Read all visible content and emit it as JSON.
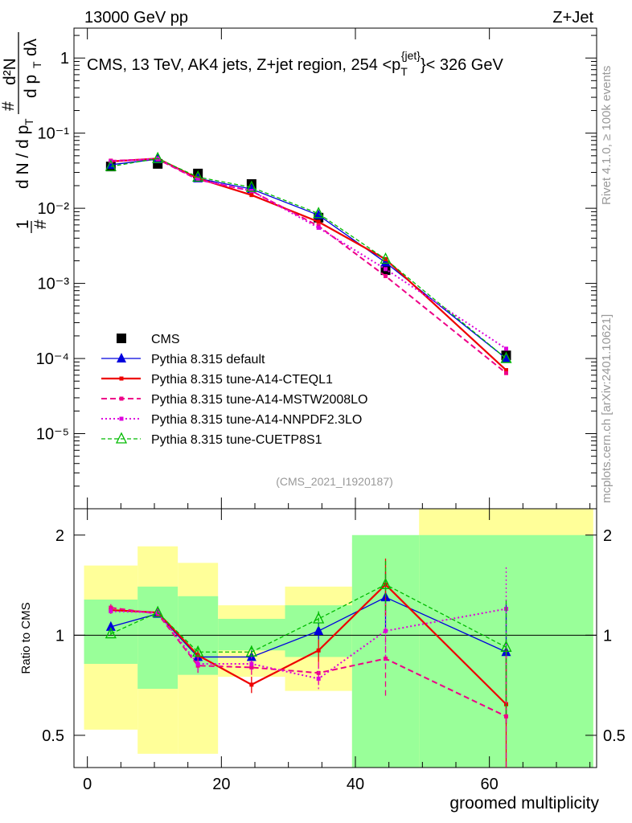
{
  "header": {
    "left": "13000 GeV pp",
    "right": "Z+Jet"
  },
  "side_labels": {
    "rivet": "Rivet 4.1.0, ≥ 100k events",
    "mcplots": "mcplots.cern.ch [arXiv:2401.10621]"
  },
  "colors": {
    "cms": "#000000",
    "default": "#0000dd",
    "ctq": "#ee0000",
    "mstw": "#ee0088",
    "nnpdf": "#dd00dd",
    "cuetp": "#00bb00",
    "band_inner": "#99ff99",
    "band_outer": "#ffff99"
  },
  "chart_data": [
    {
      "type": "scatter",
      "panel": "main",
      "title": "CMS, 13 TeV, AK4 jets, Z+jet region, 254 <p_T^{jet}< 326 GeV",
      "title_parts": {
        "prefix": "CMS, 13 TeV, AK4 jets, Z+jet region, 254 <p",
        "sub": "T",
        "sup": "{jet}",
        "suffix": "}< 326 GeV"
      },
      "ylabel_parts": {
        "n1": "1",
        "n2": "#",
        "dN": "d N / d p",
        "T1": "T",
        "hash": "#",
        "d2N": "d²N",
        "dpt": "d p",
        "T2": "T",
        "dl": "dλ"
      },
      "yscale": "log",
      "ylim": [
        1e-06,
        2.5
      ],
      "xlim": [
        -2,
        76
      ],
      "yticks": [
        {
          "value": 1,
          "label": "1"
        },
        {
          "value": 0.1,
          "label": "10⁻¹"
        },
        {
          "value": 0.01,
          "label": "10⁻²"
        },
        {
          "value": 0.001,
          "label": "10⁻³"
        },
        {
          "value": 0.0001,
          "label": "10⁻⁴"
        },
        {
          "value": 1e-05,
          "label": "10⁻⁵"
        }
      ],
      "x": [
        3.5,
        10.5,
        16.5,
        24.5,
        34.5,
        44.5,
        62.5
      ],
      "series": [
        {
          "name": "CMS",
          "style": "cms",
          "values": [
            0.036,
            0.039,
            0.029,
            0.021,
            0.0075,
            0.0015,
            0.00011
          ]
        },
        {
          "name": "Pythia 8.315 default",
          "style": "default",
          "values": [
            0.038,
            0.045,
            0.025,
            0.018,
            0.0081,
            0.0019,
            0.0001
          ]
        },
        {
          "name": "Pythia 8.315 tune-A14-CTEQL1",
          "style": "ctq",
          "values": [
            0.042,
            0.046,
            0.025,
            0.015,
            0.0066,
            0.0021,
            7e-05
          ]
        },
        {
          "name": "Pythia 8.315 tune-A14-MSTW2008LO",
          "style": "mstw",
          "values": [
            0.043,
            0.045,
            0.024,
            0.017,
            0.0058,
            0.00125,
            6.4e-05
          ]
        },
        {
          "name": "Pythia 8.315 tune-A14-NNPDF2.3LO",
          "style": "nnpdf",
          "values": [
            0.042,
            0.046,
            0.024,
            0.017,
            0.0055,
            0.00155,
            0.000135
          ]
        },
        {
          "name": "Pythia 8.315 tune-CUETP8S1",
          "style": "cuetp",
          "values": [
            0.036,
            0.046,
            0.026,
            0.019,
            0.0085,
            0.0021,
            0.0001
          ]
        }
      ],
      "annotation": "(CMS_2021_I1920187)"
    },
    {
      "type": "line",
      "panel": "ratio",
      "ylabel": "Ratio to CMS",
      "xlabel": "groomed multiplicity",
      "yscale": "log",
      "ylim": [
        0.4,
        2.4
      ],
      "xlim": [
        -2,
        76
      ],
      "xticks": [
        {
          "value": 0,
          "label": "0"
        },
        {
          "value": 20,
          "label": "20"
        },
        {
          "value": 40,
          "label": "40"
        },
        {
          "value": 60,
          "label": "60"
        }
      ],
      "yticks": [
        {
          "value": 0.5,
          "label": "0.5"
        },
        {
          "value": 1,
          "label": "1"
        },
        {
          "value": 2,
          "label": "2"
        }
      ],
      "bins": [
        {
          "lo": -0.5,
          "hi": 7.5,
          "inner": [
            0.82,
            1.28
          ],
          "outer": [
            0.52,
            1.62
          ]
        },
        {
          "lo": 7.5,
          "hi": 13.5,
          "inner": [
            0.69,
            1.4
          ],
          "outer": [
            0.44,
            1.85
          ]
        },
        {
          "lo": 13.5,
          "hi": 19.5,
          "inner": [
            0.76,
            1.31
          ],
          "outer": [
            0.44,
            1.65
          ]
        },
        {
          "lo": 19.5,
          "hi": 29.5,
          "inner": [
            0.9,
            1.12
          ],
          "outer": [
            0.75,
            1.23
          ]
        },
        {
          "lo": 29.5,
          "hi": 39.5,
          "inner": [
            0.86,
            1.23
          ],
          "outer": [
            0.68,
            1.4
          ]
        },
        {
          "lo": 39.5,
          "hi": 49.5,
          "inner": [
            0.4,
            2.0
          ],
          "outer": [
            0.4,
            1.9
          ]
        },
        {
          "lo": 49.5,
          "hi": 75.5,
          "inner": [
            0.4,
            2.0
          ],
          "outer": [
            0.4,
            2.4
          ]
        }
      ],
      "x": [
        3.5,
        10.5,
        16.5,
        24.5,
        34.5,
        44.5,
        62.5
      ],
      "series": [
        {
          "name": "Pythia 8.315 default",
          "style": "default",
          "values": [
            1.06,
            1.16,
            0.86,
            0.86,
            1.03,
            1.3,
            0.89
          ],
          "err": [
            0.02,
            0.02,
            0.03,
            0.04,
            0.06,
            0.25,
            0.35
          ]
        },
        {
          "name": "Pythia 8.315 tune-A14-CTEQL1",
          "style": "ctq",
          "values": [
            1.19,
            1.17,
            0.87,
            0.71,
            0.9,
            1.42,
            0.62
          ],
          "err": [
            0.03,
            0.03,
            0.04,
            0.04,
            0.07,
            0.28,
            0.3
          ]
        },
        {
          "name": "Pythia 8.315 tune-A14-MSTW2008LO",
          "style": "mstw",
          "values": [
            1.21,
            1.16,
            0.81,
            0.8,
            0.77,
            0.85,
            0.57
          ],
          "err": [
            0.03,
            0.03,
            0.04,
            0.04,
            0.06,
            0.2,
            0.3
          ]
        },
        {
          "name": "Pythia 8.315 tune-A14-NNPDF2.3LO",
          "style": "nnpdf",
          "values": [
            1.18,
            1.17,
            0.82,
            0.82,
            0.74,
            1.03,
            1.2
          ],
          "err": [
            0.03,
            0.03,
            0.04,
            0.04,
            0.06,
            0.22,
            0.4
          ]
        },
        {
          "name": "Pythia 8.315 tune-CUETP8S1",
          "style": "cuetp",
          "values": [
            1.01,
            1.17,
            0.89,
            0.89,
            1.12,
            1.42,
            0.92
          ],
          "err": [
            0.02,
            0.02,
            0.03,
            0.04,
            0.06,
            0.25,
            0.35
          ]
        }
      ]
    }
  ]
}
